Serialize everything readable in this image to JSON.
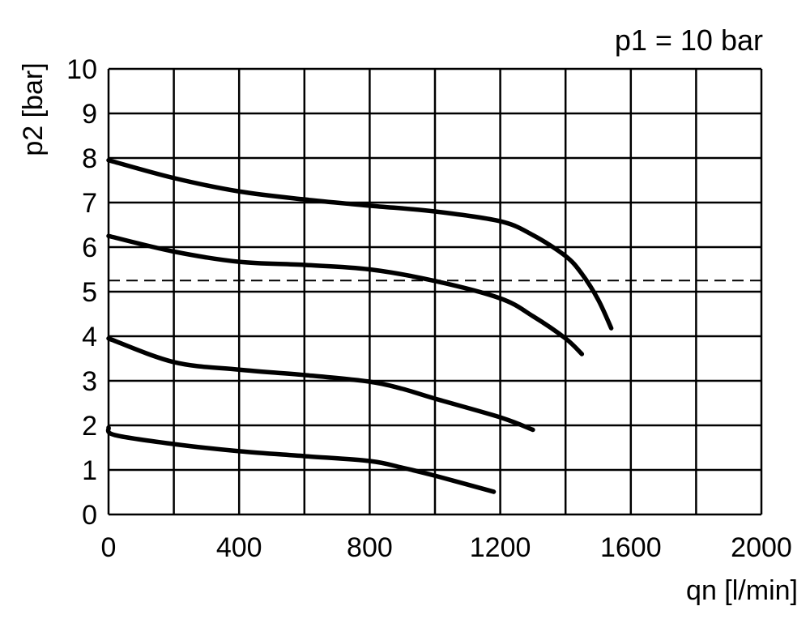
{
  "chart_data": {
    "type": "line",
    "title": "p1 = 10 bar",
    "xlabel": "qn [l/min]",
    "ylabel": "p2 [bar]",
    "xlim": [
      0,
      2000
    ],
    "ylim": [
      0,
      10
    ],
    "xticks": [
      0,
      400,
      800,
      1200,
      1600,
      2000
    ],
    "xtick_labels": [
      "0",
      "400",
      "800",
      "1200",
      "1600",
      "2000"
    ],
    "yticks": [
      0,
      1,
      2,
      3,
      4,
      5,
      6,
      7,
      8,
      9,
      10
    ],
    "ytick_labels": [
      "0",
      "1",
      "2",
      "3",
      "4",
      "5",
      "6",
      "7",
      "8",
      "9",
      "10"
    ],
    "grid": true,
    "grid_x_step": 200,
    "grid_y_step": 1,
    "line_color": "#000000",
    "series": [
      {
        "x": [
          0,
          200,
          400,
          600,
          800,
          1000,
          1200,
          1300,
          1400,
          1450,
          1500,
          1540
        ],
        "y": [
          7.95,
          7.55,
          7.25,
          7.07,
          6.93,
          6.8,
          6.58,
          6.27,
          5.8,
          5.4,
          4.82,
          4.18
        ]
      },
      {
        "x": [
          0,
          200,
          400,
          600,
          800,
          1000,
          1200,
          1300,
          1400,
          1450
        ],
        "y": [
          6.25,
          5.9,
          5.67,
          5.6,
          5.5,
          5.24,
          4.85,
          4.45,
          3.95,
          3.6
        ]
      },
      {
        "x": [
          0,
          200,
          400,
          600,
          800,
          900,
          1000,
          1200,
          1300
        ],
        "y": [
          3.95,
          3.42,
          3.25,
          3.13,
          2.98,
          2.82,
          2.6,
          2.18,
          1.9
        ]
      },
      {
        "x": [
          0,
          20,
          200,
          400,
          600,
          800,
          900,
          1000,
          1180
        ],
        "y": [
          1.95,
          1.78,
          1.58,
          1.42,
          1.31,
          1.2,
          1.05,
          0.87,
          0.51
        ]
      }
    ],
    "reference_lines": [
      {
        "y": 5.25,
        "style": "dashed"
      }
    ]
  }
}
